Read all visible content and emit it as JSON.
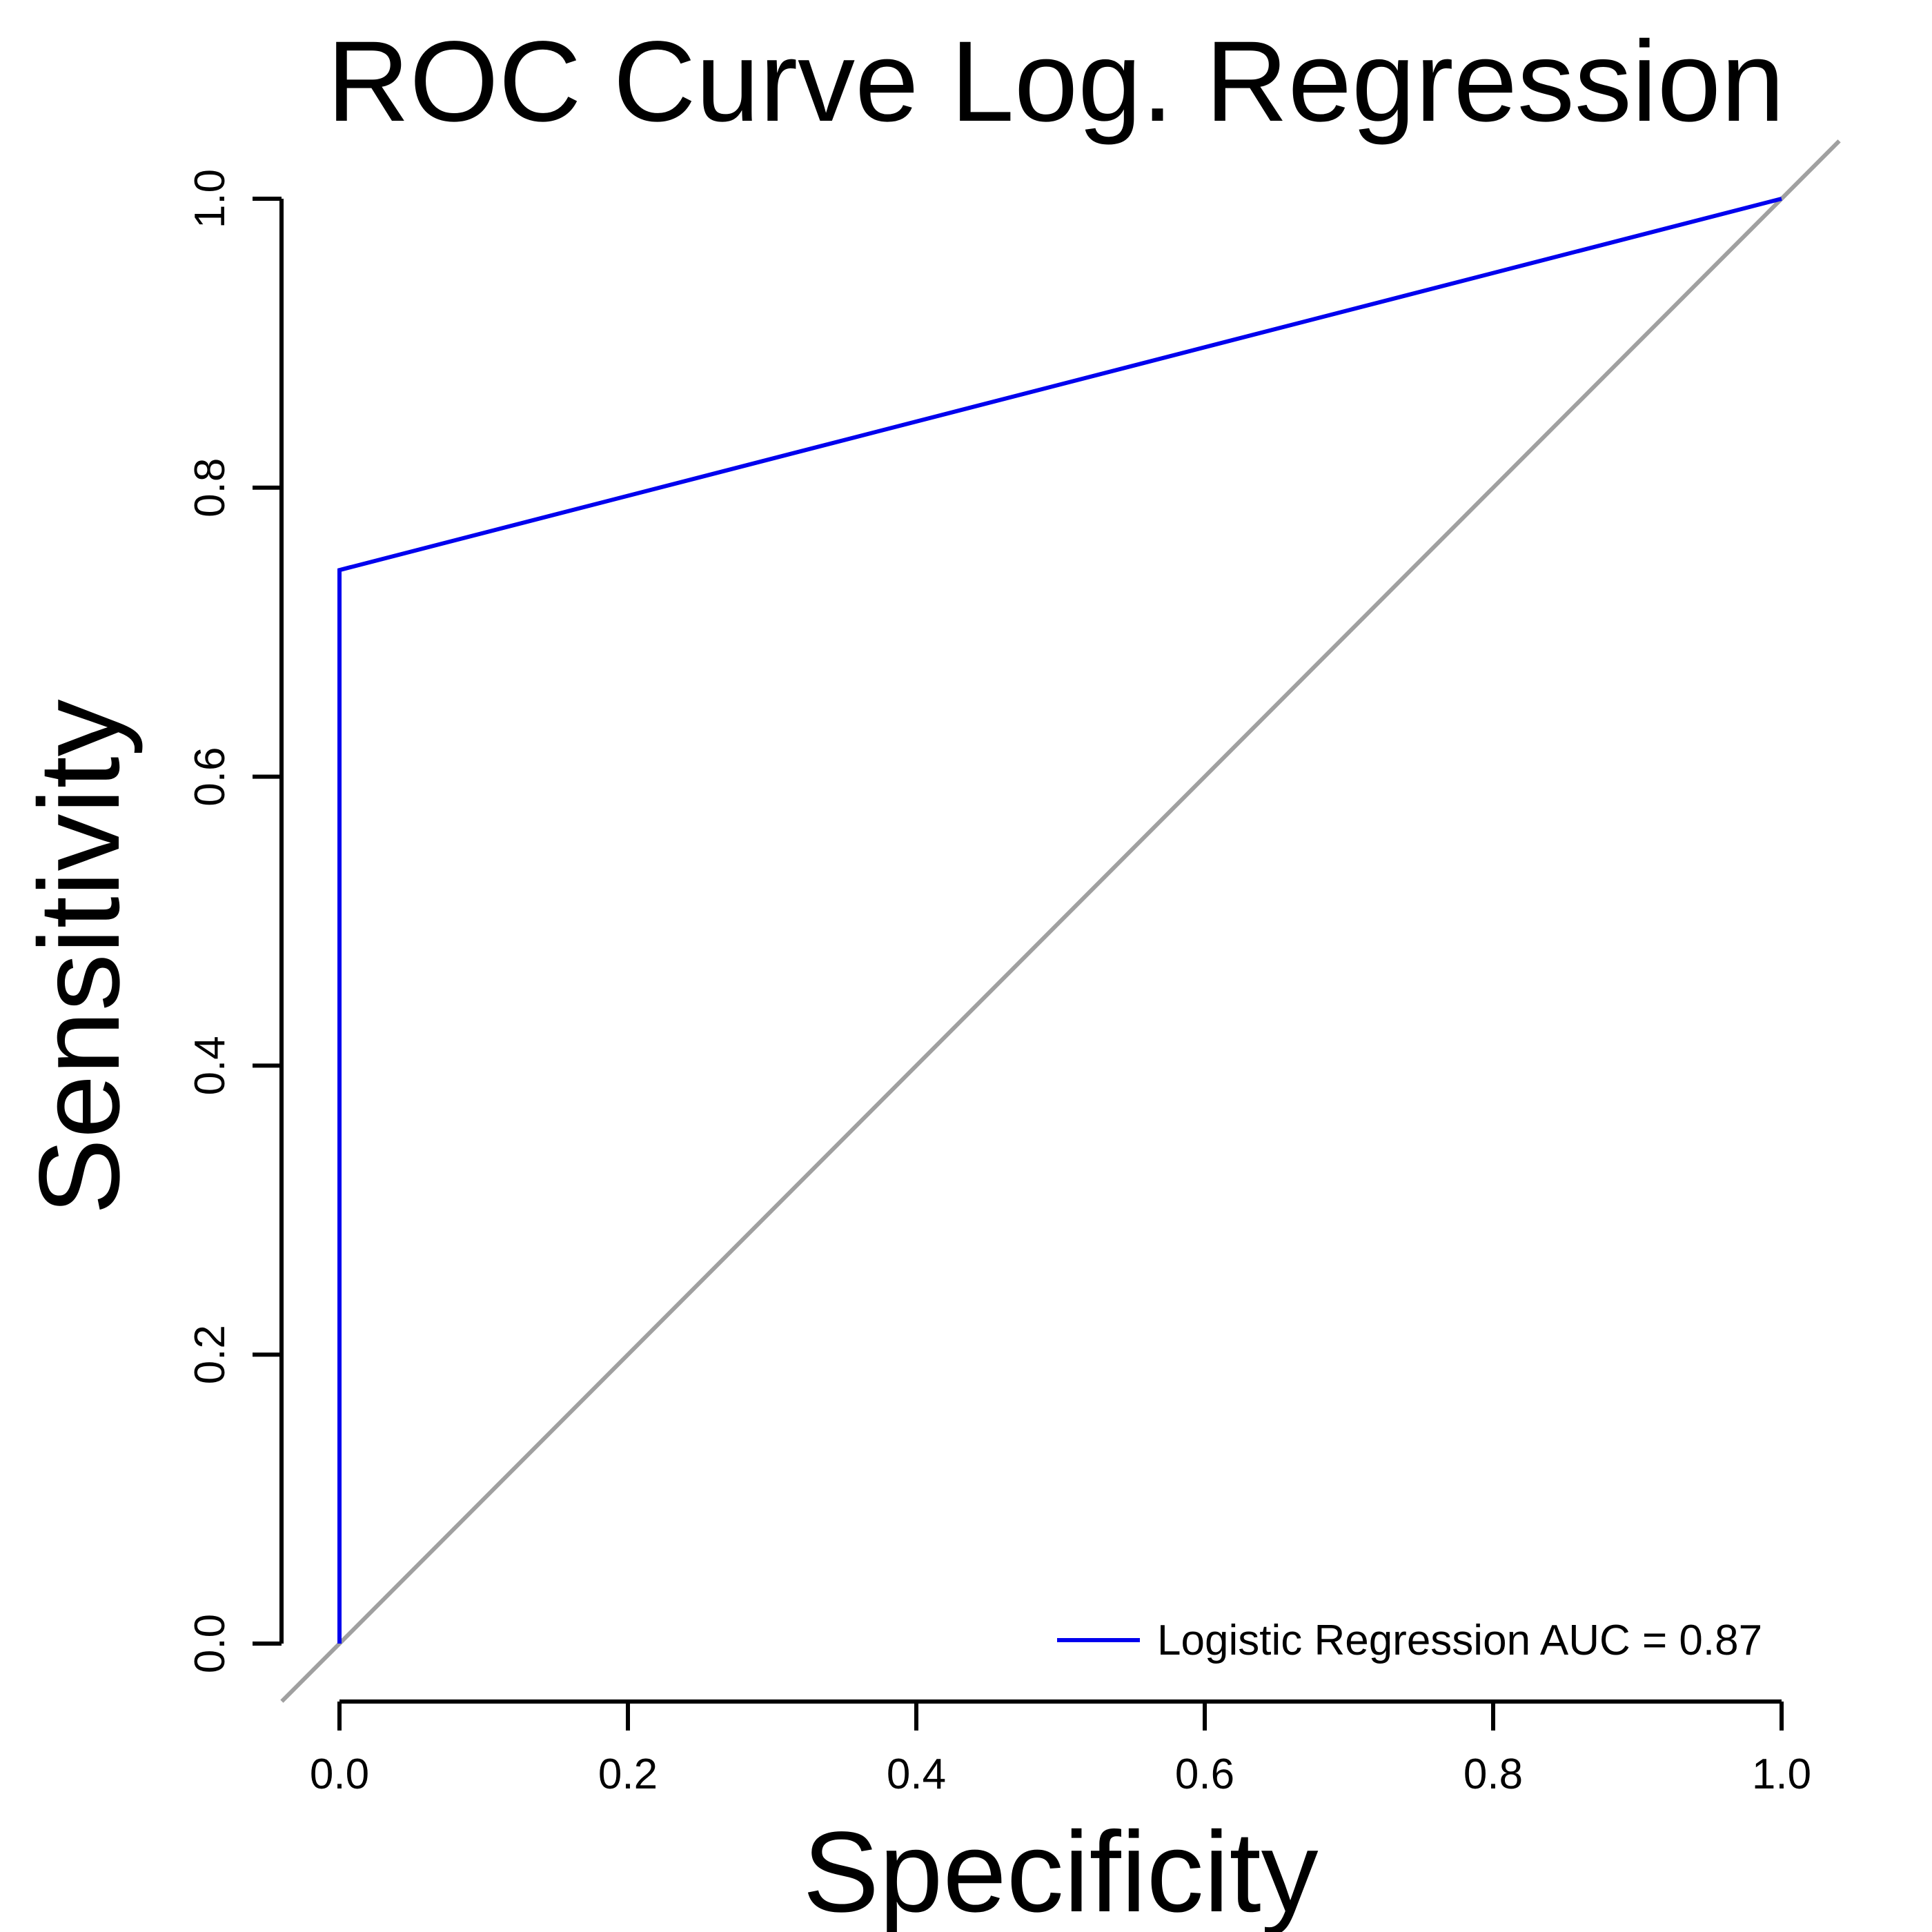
{
  "chart_data": {
    "type": "line",
    "title": "ROC Curve Log. Regression",
    "xlabel": "Specificity",
    "ylabel": "Sensitivity",
    "xlim": [
      0,
      1
    ],
    "ylim": [
      0,
      1
    ],
    "xticks": [
      "0.0",
      "0.2",
      "0.4",
      "0.6",
      "0.8",
      "1.0"
    ],
    "yticks": [
      "0.0",
      "0.2",
      "0.4",
      "0.6",
      "0.8",
      "1.0"
    ],
    "grid": false,
    "legend_position": "bottom-right",
    "series": [
      {
        "name": "Logistic Regression AUC = 0.87",
        "color": "#0000ee",
        "x": [
          0.0,
          0.0,
          1.0
        ],
        "y": [
          0.0,
          0.743,
          1.0
        ]
      }
    ],
    "reference_line": {
      "color": "#a0a0a0",
      "x": [
        0.0,
        1.0
      ],
      "y": [
        0.0,
        1.0
      ]
    }
  }
}
